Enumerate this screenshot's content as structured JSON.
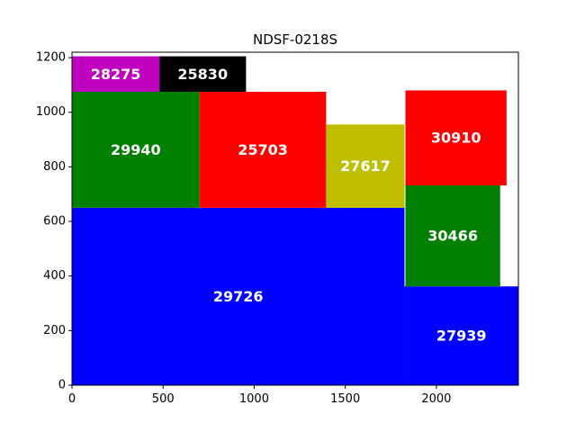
{
  "chart_data": {
    "type": "rect_layout",
    "title": "NDSF-0218S",
    "xlabel": "",
    "ylabel": "",
    "xlim": [
      0,
      2450
    ],
    "ylim": [
      0,
      1220
    ],
    "xticks": [
      0,
      500,
      1000,
      1500,
      2000
    ],
    "yticks": [
      0,
      200,
      400,
      600,
      800,
      1000,
      1200
    ],
    "grid": false,
    "rects": [
      {
        "label": "29726",
        "x": 0,
        "y": 0,
        "w": 1825,
        "h": 650,
        "color": "#0000ff"
      },
      {
        "label": "27939",
        "x": 1825,
        "y": 0,
        "w": 625,
        "h": 362,
        "color": "#0000ff"
      },
      {
        "label": "29940",
        "x": 0,
        "y": 650,
        "w": 700,
        "h": 425,
        "color": "#008000"
      },
      {
        "label": "25703",
        "x": 700,
        "y": 650,
        "w": 695,
        "h": 425,
        "color": "#ff0000"
      },
      {
        "label": "27617",
        "x": 1395,
        "y": 650,
        "w": 430,
        "h": 305,
        "color": "#bfbf00"
      },
      {
        "label": "30466",
        "x": 1830,
        "y": 362,
        "w": 520,
        "h": 370,
        "color": "#008000"
      },
      {
        "label": "30910",
        "x": 1830,
        "y": 732,
        "w": 555,
        "h": 348,
        "color": "#ff0000"
      },
      {
        "label": "28275",
        "x": 0,
        "y": 1075,
        "w": 480,
        "h": 130,
        "color": "#bf00bf"
      },
      {
        "label": "25830",
        "x": 480,
        "y": 1075,
        "w": 475,
        "h": 130,
        "color": "#000000"
      }
    ]
  }
}
